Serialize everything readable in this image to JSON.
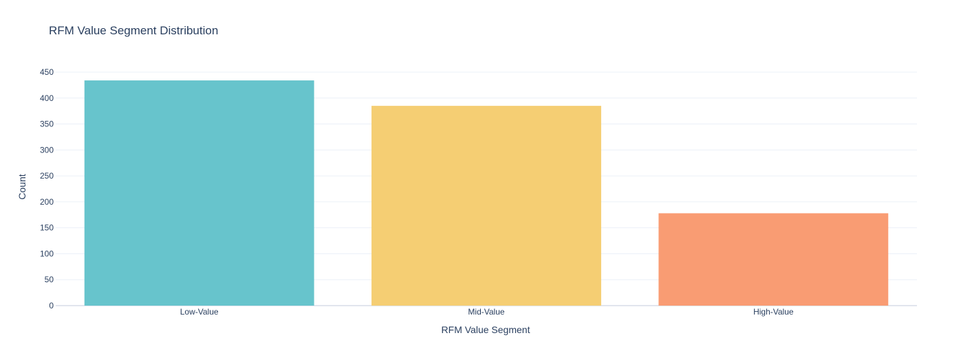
{
  "chart_data": {
    "type": "bar",
    "title": "RFM Value Segment Distribution",
    "xlabel": "RFM Value Segment",
    "ylabel": "Count",
    "categories": [
      "Low-Value",
      "Mid-Value",
      "High-Value"
    ],
    "values": [
      434,
      385,
      178
    ],
    "colors": [
      "#67c4cc",
      "#f5ce73",
      "#f99c73"
    ],
    "ylim": [
      0,
      450
    ],
    "yticks": [
      0,
      50,
      100,
      150,
      200,
      250,
      300,
      350,
      400,
      450
    ],
    "grid": true,
    "legend": "none"
  },
  "style": {
    "text_color": "#2a3f5f",
    "grid_color": "#ebf0f8",
    "zeroline_color": "#e1e5ed",
    "background": "#ffffff"
  }
}
